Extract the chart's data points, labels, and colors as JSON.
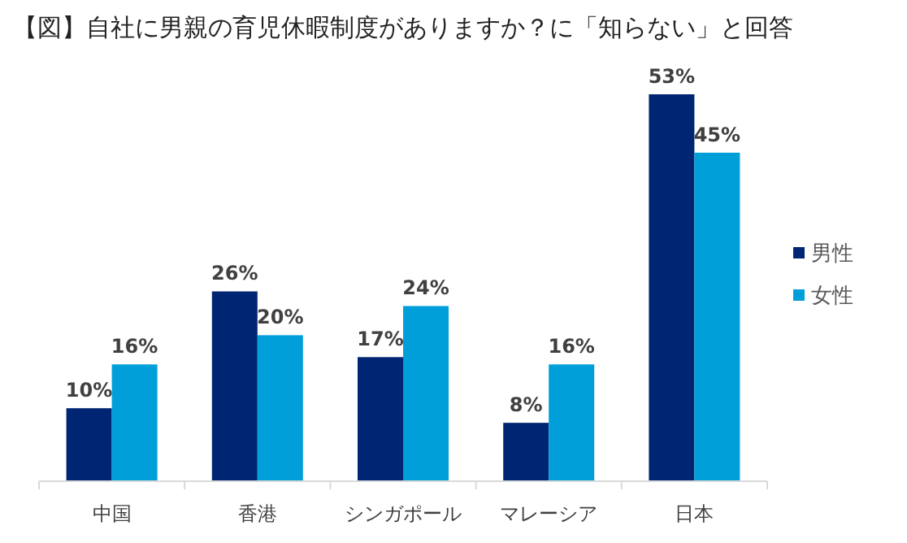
{
  "chart_data": {
    "type": "bar",
    "title": "【図】自社に男親の育児休暇制度がありますか？に「知らない」と回答",
    "categories": [
      "中国",
      "香港",
      "シンガポール",
      "マレーシア",
      "日本"
    ],
    "series": [
      {
        "name": "男性",
        "color": "#002673",
        "values": [
          10,
          26,
          17,
          8,
          53
        ],
        "value_labels": [
          "10%",
          "26%",
          "17%",
          "8%",
          "53%"
        ]
      },
      {
        "name": "女性",
        "color": "#009fda",
        "values": [
          16,
          20,
          24,
          16,
          45
        ],
        "value_labels": [
          "16%",
          "20%",
          "24%",
          "16%",
          "45%"
        ]
      }
    ],
    "legend": "right"
  }
}
